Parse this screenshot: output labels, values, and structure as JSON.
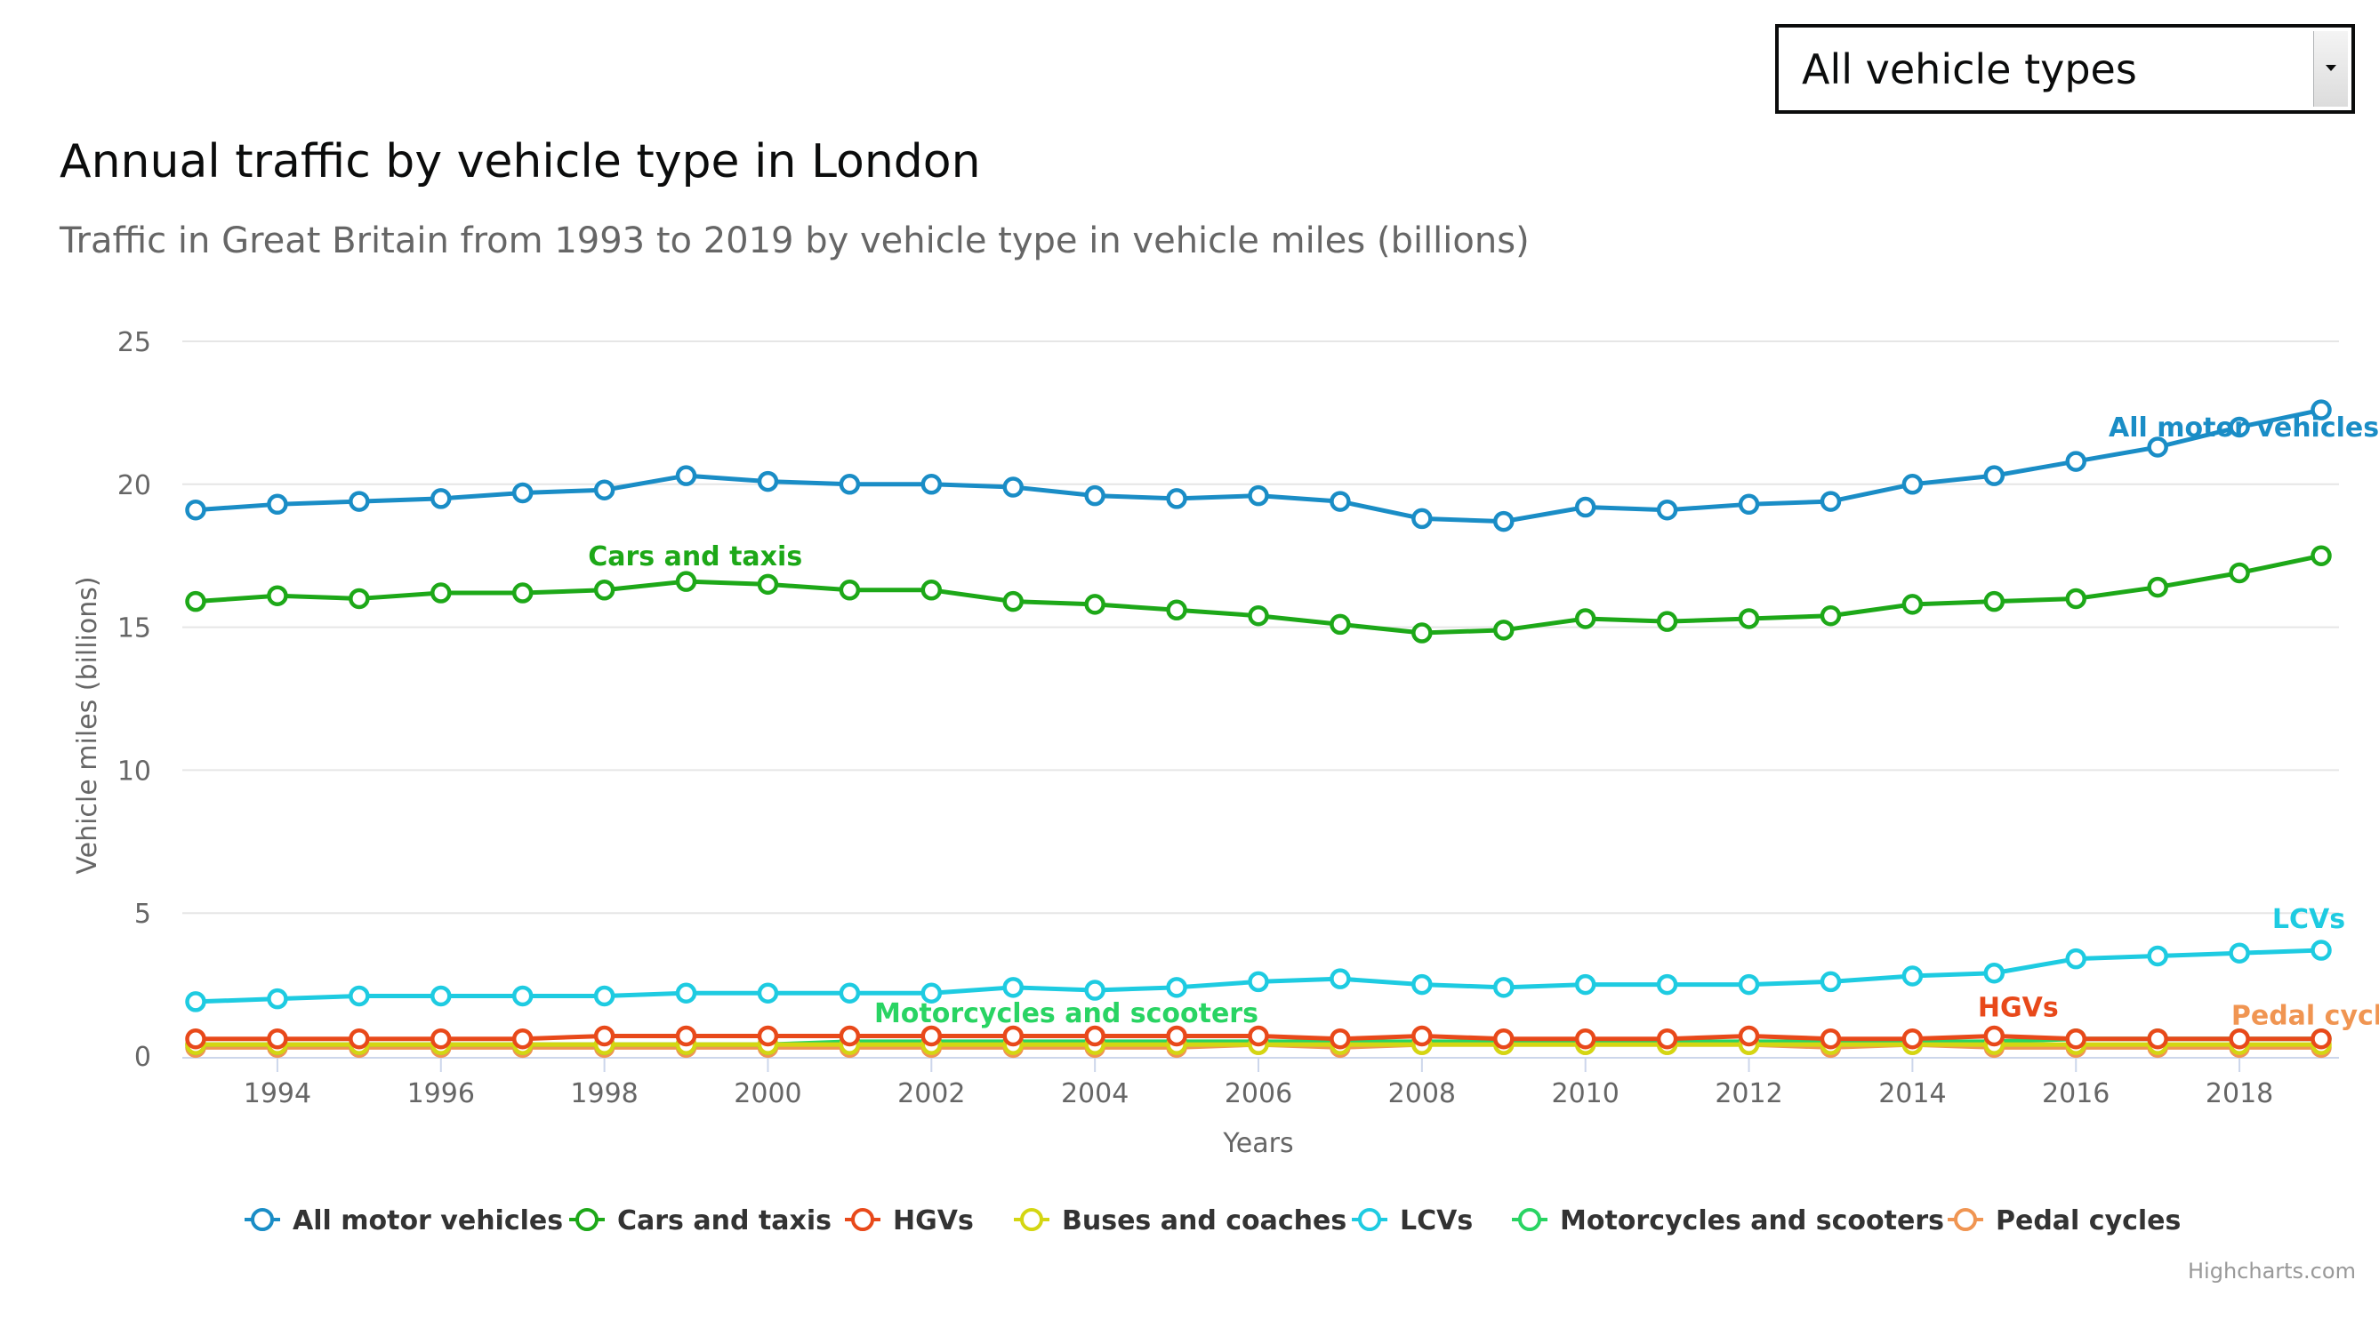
{
  "filter": {
    "selected": "All vehicle types"
  },
  "credit": "Highcharts.com",
  "chart_data": {
    "type": "line",
    "title": "Annual traffic by vehicle type in London",
    "subtitle": "Traffic in Great Britain from 1993 to 2019 by vehicle type in vehicle miles (billions)",
    "xlabel": "Years",
    "ylabel": "Vehicle miles (billions)",
    "ylim": [
      0,
      25
    ],
    "yticks": [
      0,
      5,
      10,
      15,
      20,
      25
    ],
    "xlim": [
      1993,
      2019
    ],
    "xticks": [
      1994,
      1996,
      1998,
      2000,
      2002,
      2004,
      2006,
      2008,
      2010,
      2012,
      2014,
      2016,
      2018
    ],
    "grid": true,
    "legend": "bottom",
    "x": [
      1993,
      1994,
      1995,
      1996,
      1997,
      1998,
      1999,
      2000,
      2001,
      2002,
      2003,
      2004,
      2005,
      2006,
      2007,
      2008,
      2009,
      2010,
      2011,
      2012,
      2013,
      2014,
      2015,
      2016,
      2017,
      2018,
      2019
    ],
    "series": [
      {
        "name": "All motor vehicles",
        "color": "#1a8dc6",
        "label": "All motor vehicles",
        "label_at": 2016.4,
        "values": [
          19.1,
          19.3,
          19.4,
          19.5,
          19.7,
          19.8,
          20.3,
          20.1,
          20.0,
          20.0,
          19.9,
          19.6,
          19.5,
          19.6,
          19.4,
          18.8,
          18.7,
          19.2,
          19.1,
          19.3,
          19.4,
          20.0,
          20.3,
          20.8,
          21.3,
          22.0,
          22.6
        ]
      },
      {
        "name": "Cars and taxis",
        "color": "#1da818",
        "label": "Cars and taxis",
        "label_at": 1997.8,
        "values": [
          15.9,
          16.1,
          16.0,
          16.2,
          16.2,
          16.3,
          16.6,
          16.5,
          16.3,
          16.3,
          15.9,
          15.8,
          15.6,
          15.4,
          15.1,
          14.8,
          14.9,
          15.3,
          15.2,
          15.3,
          15.4,
          15.8,
          15.9,
          16.0,
          16.4,
          16.9,
          17.5
        ]
      },
      {
        "name": "HGVs",
        "color": "#e8491a",
        "label": "HGVs",
        "label_at": 2014.8,
        "values": [
          0.6,
          0.6,
          0.6,
          0.6,
          0.6,
          0.7,
          0.7,
          0.7,
          0.7,
          0.7,
          0.7,
          0.7,
          0.7,
          0.7,
          0.6,
          0.7,
          0.6,
          0.6,
          0.6,
          0.7,
          0.6,
          0.6,
          0.7,
          0.6,
          0.6,
          0.6,
          0.6
        ]
      },
      {
        "name": "Buses and coaches",
        "color": "#d4d612",
        "label": "",
        "label_at": null,
        "values": [
          0.4,
          0.4,
          0.4,
          0.4,
          0.4,
          0.4,
          0.4,
          0.4,
          0.4,
          0.4,
          0.4,
          0.4,
          0.4,
          0.4,
          0.4,
          0.4,
          0.4,
          0.4,
          0.4,
          0.4,
          0.4,
          0.4,
          0.4,
          0.4,
          0.4,
          0.4,
          0.4
        ]
      },
      {
        "name": "LCVs",
        "color": "#1ecbe1",
        "label": "LCVs",
        "label_at": 2018.4,
        "values": [
          1.9,
          2.0,
          2.1,
          2.1,
          2.1,
          2.1,
          2.2,
          2.2,
          2.2,
          2.2,
          2.4,
          2.3,
          2.4,
          2.6,
          2.7,
          2.5,
          2.4,
          2.5,
          2.5,
          2.5,
          2.6,
          2.8,
          2.9,
          3.4,
          3.5,
          3.6,
          3.7
        ]
      },
      {
        "name": "Motorcycles and scooters",
        "color": "#29d463",
        "label": "Motorcycles and scooters",
        "label_at": 2001.3,
        "values": [
          0.4,
          0.4,
          0.4,
          0.4,
          0.4,
          0.4,
          0.4,
          0.4,
          0.5,
          0.5,
          0.5,
          0.5,
          0.5,
          0.5,
          0.5,
          0.5,
          0.5,
          0.5,
          0.5,
          0.5,
          0.5,
          0.5,
          0.5,
          0.6,
          0.6,
          0.6,
          0.6
        ]
      },
      {
        "name": "Pedal cycles",
        "color": "#f09552",
        "label": "Pedal cycles",
        "label_at": 2017.9,
        "values": [
          0.3,
          0.3,
          0.3,
          0.3,
          0.3,
          0.3,
          0.3,
          0.3,
          0.3,
          0.3,
          0.3,
          0.3,
          0.3,
          0.4,
          0.3,
          0.4,
          0.4,
          0.4,
          0.4,
          0.4,
          0.3,
          0.4,
          0.3,
          0.3,
          0.3,
          0.3,
          0.3
        ]
      }
    ]
  }
}
